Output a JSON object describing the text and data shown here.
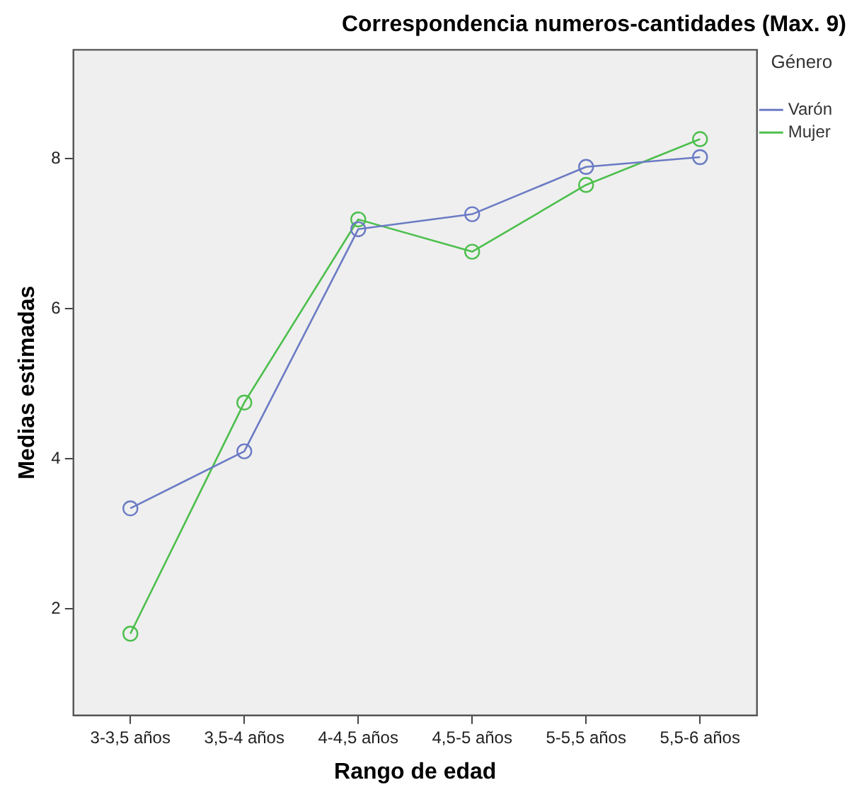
{
  "chart_data": {
    "type": "line",
    "title": "Correspondencia numeros-cantidades (Max. 9)",
    "xlabel": "Rango de edad",
    "ylabel": "Medias estimadas",
    "legend_title": "Género",
    "categories": [
      "3-3,5 años",
      "3,5-4 años",
      "4-4,5 años",
      "4,5-5 años",
      "5-5,5 años",
      "5,5-6 años"
    ],
    "series": [
      {
        "name": "Varón",
        "color": "#6b7bc4",
        "values": [
          3.34,
          4.1,
          7.06,
          7.26,
          7.89,
          8.02
        ]
      },
      {
        "name": "Mujer",
        "color": "#4cbf4c",
        "values": [
          1.67,
          4.75,
          7.19,
          6.76,
          7.65,
          8.26
        ]
      }
    ],
    "ylim": [
      0.58,
      9.45
    ],
    "yticks": [
      2,
      4,
      6,
      8
    ],
    "grid": false,
    "legend": "right",
    "marker": "circle",
    "line_style": "solid"
  }
}
